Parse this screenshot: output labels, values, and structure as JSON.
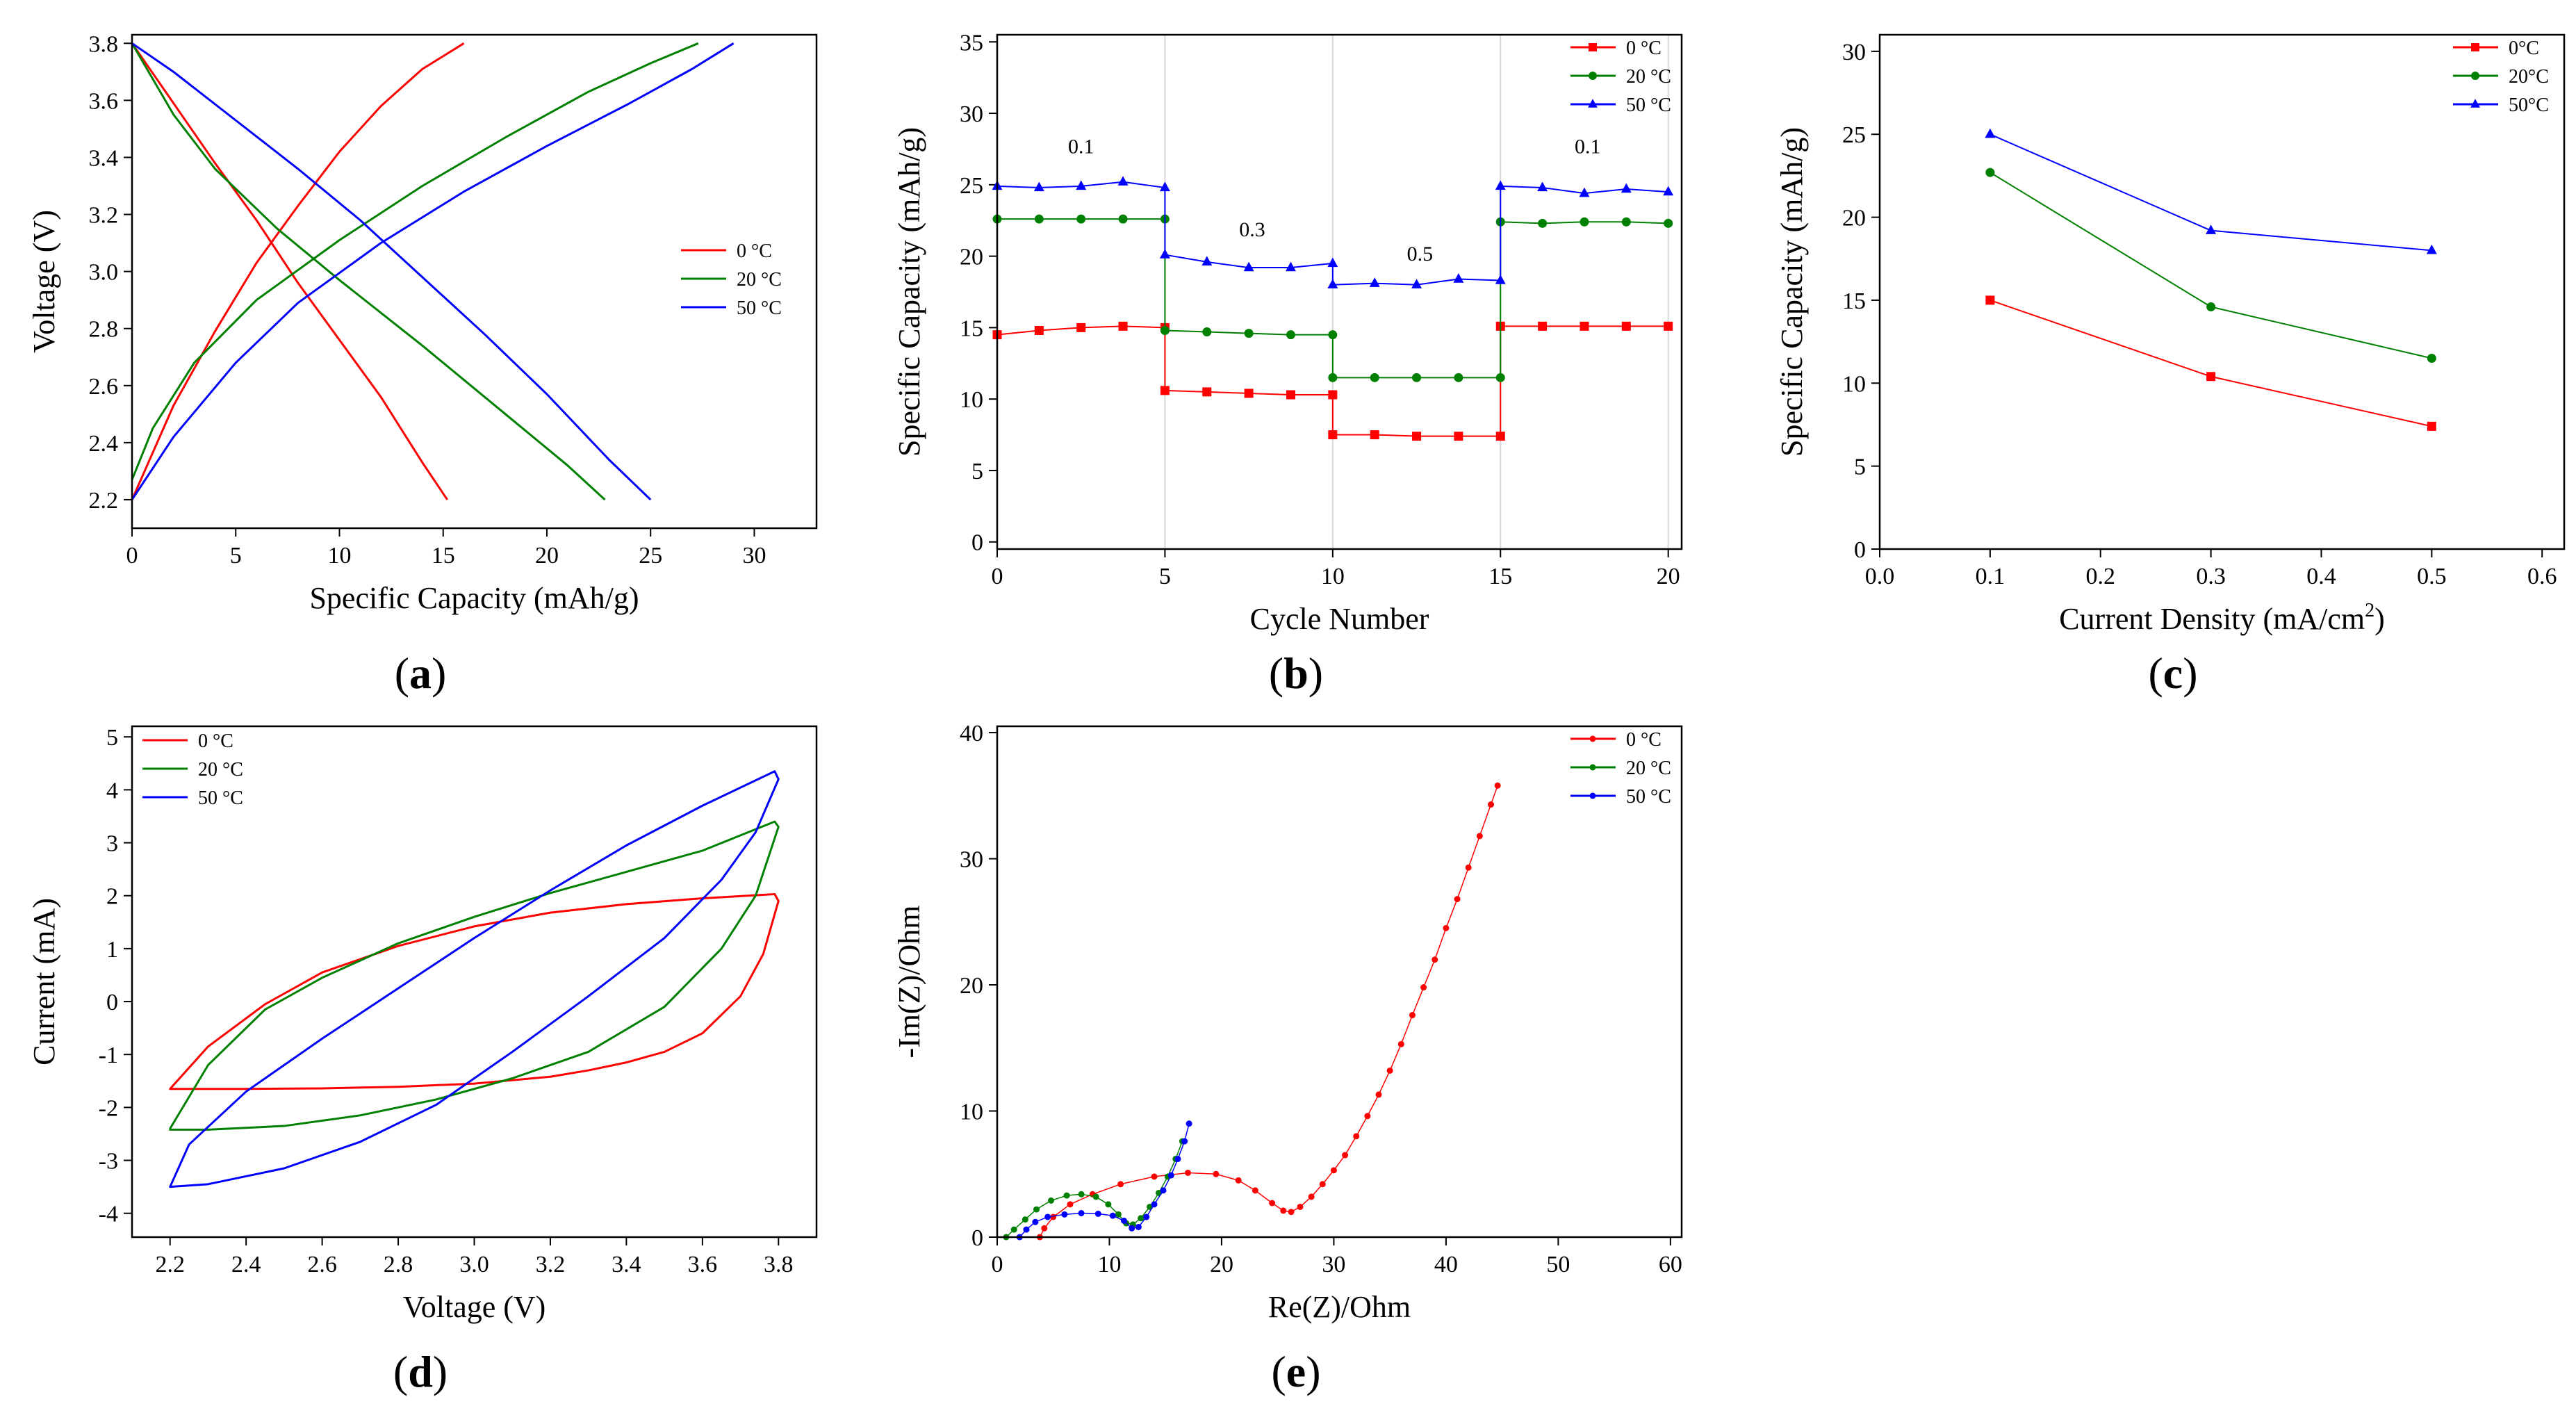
{
  "chart_data": [
    {
      "id": "a",
      "panel_label": "(a)",
      "type": "line",
      "xlabel": "Specific Capacity (mAh/g)",
      "ylabel": "Voltage (V)",
      "xlim": [
        0,
        33
      ],
      "ylim": [
        2.1,
        3.83
      ],
      "xticks": [
        0,
        5,
        10,
        15,
        20,
        25,
        30
      ],
      "yticks": [
        2.2,
        2.4,
        2.6,
        2.8,
        3.0,
        3.2,
        3.4,
        3.6,
        3.8
      ],
      "xtick_labels": [
        "0",
        "5",
        "10",
        "15",
        "20",
        "25",
        "30"
      ],
      "ytick_labels": [
        "2.2",
        "2.4",
        "2.6",
        "2.8",
        "3.0",
        "3.2",
        "3.4",
        "3.6",
        "3.8"
      ],
      "legend_position": "right",
      "series": [
        {
          "name": "0 °C",
          "color": "#ff0000",
          "curves": [
            {
              "x": [
                0,
                2,
                4,
                6,
                8,
                10,
                12,
                14,
                16
              ],
              "y": [
                2.2,
                2.53,
                2.79,
                3.03,
                3.23,
                3.42,
                3.58,
                3.71,
                3.8
              ]
            },
            {
              "x": [
                0,
                2,
                4,
                6,
                8,
                10,
                12,
                14,
                15.2
              ],
              "y": [
                3.8,
                3.59,
                3.38,
                3.18,
                2.96,
                2.76,
                2.56,
                2.33,
                2.2
              ]
            }
          ]
        },
        {
          "name": "20 °C",
          "color": "#008000",
          "curves": [
            {
              "x": [
                0,
                1,
                3,
                6,
                10,
                14,
                18,
                22,
                25,
                27.3
              ],
              "y": [
                2.27,
                2.45,
                2.68,
                2.9,
                3.11,
                3.3,
                3.47,
                3.63,
                3.73,
                3.8
              ]
            },
            {
              "x": [
                0,
                2,
                4,
                7,
                10,
                14,
                18,
                21,
                22.8
              ],
              "y": [
                3.8,
                3.55,
                3.36,
                3.15,
                2.97,
                2.74,
                2.5,
                2.32,
                2.2
              ]
            }
          ]
        },
        {
          "name": "50 °C",
          "color": "#0000ff",
          "curves": [
            {
              "x": [
                0,
                2,
                5,
                8,
                12,
                16,
                20,
                24,
                27,
                29
              ],
              "y": [
                2.2,
                2.42,
                2.68,
                2.89,
                3.1,
                3.28,
                3.44,
                3.59,
                3.71,
                3.8
              ]
            },
            {
              "x": [
                0,
                2,
                5,
                8,
                11,
                14,
                17,
                20,
                23,
                25
              ],
              "y": [
                3.8,
                3.7,
                3.53,
                3.36,
                3.18,
                2.98,
                2.78,
                2.57,
                2.34,
                2.2
              ]
            }
          ]
        }
      ]
    },
    {
      "id": "b",
      "panel_label": "(b)",
      "type": "line",
      "xlabel": "Cycle Number",
      "ylabel": "Specific Capacity (mAh/g)",
      "xlim": [
        0,
        20.4
      ],
      "ylim": [
        -0.5,
        35.5
      ],
      "xticks": [
        0,
        5,
        10,
        15,
        20
      ],
      "yticks": [
        0,
        5,
        10,
        15,
        20,
        25,
        30,
        35
      ],
      "xtick_labels": [
        "0",
        "5",
        "10",
        "15",
        "20"
      ],
      "ytick_labels": [
        "0",
        "5",
        "10",
        "15",
        "20",
        "25",
        "30",
        "35"
      ],
      "legend_position": "top-right",
      "vlines": [
        5,
        10,
        15,
        20
      ],
      "annotations": [
        {
          "text": "0.1",
          "x": 2.5,
          "y": 27.2
        },
        {
          "text": "0.3",
          "x": 7.6,
          "y": 21.4
        },
        {
          "text": "0.5",
          "x": 12.6,
          "y": 19.7
        },
        {
          "text": "0.1",
          "x": 17.6,
          "y": 27.2
        }
      ],
      "series": [
        {
          "name": "0 °C",
          "color": "#ff0000",
          "marker": "square",
          "x": [
            0,
            1.25,
            2.5,
            3.75,
            5,
            5,
            6.25,
            7.5,
            8.75,
            10,
            10,
            11.25,
            12.5,
            13.75,
            15,
            15,
            16.25,
            17.5,
            18.75,
            20
          ],
          "y": [
            14.5,
            14.8,
            15.0,
            15.1,
            15.0,
            10.6,
            10.5,
            10.4,
            10.3,
            10.3,
            7.5,
            7.5,
            7.4,
            7.4,
            7.4,
            15.1,
            15.1,
            15.1,
            15.1,
            15.1
          ]
        },
        {
          "name": "20 °C",
          "color": "#008000",
          "marker": "circle",
          "x": [
            0,
            1.25,
            2.5,
            3.75,
            5,
            5,
            6.25,
            7.5,
            8.75,
            10,
            10,
            11.25,
            12.5,
            13.75,
            15,
            15,
            16.25,
            17.5,
            18.75,
            20
          ],
          "y": [
            22.6,
            22.6,
            22.6,
            22.6,
            22.6,
            14.8,
            14.7,
            14.6,
            14.5,
            14.5,
            11.5,
            11.5,
            11.5,
            11.5,
            11.5,
            22.4,
            22.3,
            22.4,
            22.4,
            22.3
          ]
        },
        {
          "name": "50 °C",
          "color": "#0000ff",
          "marker": "triangle",
          "x": [
            0,
            1.25,
            2.5,
            3.75,
            5,
            5,
            6.25,
            7.5,
            8.75,
            10,
            10,
            11.25,
            12.5,
            13.75,
            15,
            15,
            16.25,
            17.5,
            18.75,
            20
          ],
          "y": [
            24.9,
            24.8,
            24.9,
            25.2,
            24.8,
            20.1,
            19.6,
            19.2,
            19.2,
            19.5,
            18.0,
            18.1,
            18.0,
            18.4,
            18.3,
            24.9,
            24.8,
            24.4,
            24.7,
            24.5
          ]
        }
      ]
    },
    {
      "id": "c",
      "panel_label": "(c)",
      "type": "line",
      "xlabel": "Current Density (mA/cm",
      "xlabel_sup": "2",
      "xlabel_end": ")",
      "ylabel": "Specific Capacity (mAh/g)",
      "xlim": [
        0,
        0.62
      ],
      "ylim": [
        0,
        31
      ],
      "xticks": [
        0,
        0.1,
        0.2,
        0.3,
        0.4,
        0.5,
        0.6
      ],
      "yticks": [
        0,
        5,
        10,
        15,
        20,
        25,
        30
      ],
      "xtick_labels": [
        "0.0",
        "0.1",
        "0.2",
        "0.3",
        "0.4",
        "0.5",
        "0.6"
      ],
      "ytick_labels": [
        "0",
        "5",
        "10",
        "15",
        "20",
        "25",
        "30"
      ],
      "legend_position": "top-right",
      "series": [
        {
          "name": "0°C",
          "color": "#ff0000",
          "marker": "square",
          "x": [
            0.1,
            0.3,
            0.5
          ],
          "y": [
            15.0,
            10.4,
            7.4
          ]
        },
        {
          "name": "20°C",
          "color": "#008000",
          "marker": "circle",
          "x": [
            0.1,
            0.3,
            0.5
          ],
          "y": [
            22.7,
            14.6,
            11.5
          ]
        },
        {
          "name": "50°C",
          "color": "#0000ff",
          "marker": "triangle",
          "x": [
            0.1,
            0.3,
            0.5
          ],
          "y": [
            25.0,
            19.2,
            18.0
          ]
        }
      ]
    },
    {
      "id": "d",
      "panel_label": "(d)",
      "type": "line",
      "xlabel": "Voltage (V)",
      "ylabel": "Current (mA)",
      "xlim": [
        2.1,
        3.9
      ],
      "ylim": [
        -4.45,
        5.2
      ],
      "xticks": [
        2.2,
        2.4,
        2.6,
        2.8,
        3.0,
        3.2,
        3.4,
        3.6,
        3.8
      ],
      "yticks": [
        -4,
        -3,
        -2,
        -1,
        0,
        1,
        2,
        3,
        4,
        5
      ],
      "xtick_labels": [
        "2.2",
        "2.4",
        "2.6",
        "2.8",
        "3.0",
        "3.2",
        "3.4",
        "3.6",
        "3.8"
      ],
      "ytick_labels": [
        "-4",
        "-3",
        "-2",
        "-1",
        "0",
        "1",
        "2",
        "3",
        "4",
        "5"
      ],
      "legend_position": "top-left",
      "series": [
        {
          "name": "0 °C",
          "color": "#ff0000",
          "closed": true,
          "x": [
            2.2,
            2.3,
            2.45,
            2.6,
            2.8,
            3.0,
            3.2,
            3.4,
            3.6,
            3.79,
            3.8,
            3.76,
            3.7,
            3.6,
            3.5,
            3.4,
            3.3,
            3.2,
            3.0,
            2.8,
            2.6,
            2.4,
            2.2
          ],
          "y": [
            -1.65,
            -0.85,
            -0.05,
            0.55,
            1.05,
            1.42,
            1.68,
            1.84,
            1.95,
            2.03,
            1.9,
            0.9,
            0.1,
            -0.6,
            -0.95,
            -1.15,
            -1.3,
            -1.42,
            -1.55,
            -1.61,
            -1.64,
            -1.65,
            -1.65
          ]
        },
        {
          "name": "20 °C",
          "color": "#008000",
          "closed": true,
          "x": [
            2.2,
            2.3,
            2.45,
            2.6,
            2.8,
            3.0,
            3.2,
            3.4,
            3.6,
            3.79,
            3.8,
            3.74,
            3.65,
            3.5,
            3.3,
            3.1,
            2.9,
            2.7,
            2.5,
            2.3,
            2.2
          ],
          "y": [
            -2.4,
            -1.2,
            -0.15,
            0.45,
            1.1,
            1.6,
            2.05,
            2.45,
            2.85,
            3.4,
            3.3,
            2.0,
            1.0,
            -0.1,
            -0.95,
            -1.45,
            -1.85,
            -2.15,
            -2.35,
            -2.42,
            -2.42
          ]
        },
        {
          "name": "50 °C",
          "color": "#0000ff",
          "closed": true,
          "x": [
            2.2,
            2.25,
            2.4,
            2.6,
            2.8,
            3.0,
            3.2,
            3.4,
            3.6,
            3.79,
            3.8,
            3.74,
            3.65,
            3.5,
            3.3,
            3.1,
            2.9,
            2.7,
            2.5,
            2.3,
            2.2
          ],
          "y": [
            -3.5,
            -2.7,
            -1.7,
            -0.7,
            0.25,
            1.2,
            2.1,
            2.95,
            3.7,
            4.35,
            4.2,
            3.2,
            2.3,
            1.2,
            0.1,
            -0.95,
            -1.95,
            -2.65,
            -3.15,
            -3.45,
            -3.5
          ]
        }
      ]
    },
    {
      "id": "e",
      "panel_label": "(e)",
      "type": "scatter",
      "xlabel": "Re(Z)/Ohm",
      "ylabel": "-Im(Z)/Ohm",
      "xlim": [
        0,
        61
      ],
      "ylim": [
        0,
        40.5
      ],
      "xticks": [
        0,
        10,
        20,
        30,
        40,
        50,
        60
      ],
      "yticks": [
        0,
        10,
        20,
        30,
        40
      ],
      "xtick_labels": [
        "0",
        "10",
        "20",
        "30",
        "40",
        "50",
        "60"
      ],
      "ytick_labels": [
        "0",
        "10",
        "20",
        "30",
        "40"
      ],
      "legend_position": "top-right",
      "series": [
        {
          "name": "0 °C",
          "color": "#ff0000",
          "x": [
            3.8,
            4.2,
            5,
            6.5,
            8.5,
            11,
            14,
            17,
            19.5,
            21.5,
            23,
            24.5,
            25.5,
            26.2,
            27,
            28,
            29,
            30,
            31,
            32,
            33,
            34,
            35,
            36,
            37,
            38,
            39,
            40,
            41,
            42,
            43,
            44,
            44.6
          ],
          "y": [
            0,
            0.7,
            1.6,
            2.6,
            3.4,
            4.2,
            4.8,
            5.1,
            5.0,
            4.5,
            3.7,
            2.7,
            2.1,
            2.0,
            2.4,
            3.2,
            4.2,
            5.3,
            6.5,
            8.0,
            9.6,
            11.3,
            13.2,
            15.3,
            17.6,
            19.8,
            22.0,
            24.5,
            26.8,
            29.3,
            31.8,
            34.3,
            35.8
          ]
        },
        {
          "name": "20 °C",
          "color": "#008000",
          "x": [
            0.8,
            1.5,
            2.5,
            3.5,
            4.8,
            6.2,
            7.5,
            8.8,
            9.9,
            10.8,
            11.5,
            12.1,
            12.8,
            13.6,
            14.4,
            15.2,
            15.9,
            16.5
          ],
          "y": [
            0,
            0.6,
            1.4,
            2.2,
            2.9,
            3.3,
            3.4,
            3.2,
            2.6,
            1.8,
            1.1,
            1.0,
            1.5,
            2.4,
            3.5,
            4.8,
            6.2,
            7.6
          ]
        },
        {
          "name": "50 °C",
          "color": "#0000ff",
          "x": [
            2.0,
            2.6,
            3.4,
            4.5,
            6,
            7.5,
            9,
            10.3,
            11.3,
            12.0,
            12.6,
            13.3,
            14,
            14.8,
            15.5,
            16.1,
            16.7,
            17.1
          ],
          "y": [
            0,
            0.6,
            1.2,
            1.6,
            1.8,
            1.9,
            1.85,
            1.7,
            1.3,
            0.7,
            0.8,
            1.6,
            2.6,
            3.7,
            4.9,
            6.2,
            7.6,
            9.0
          ]
        }
      ]
    }
  ]
}
